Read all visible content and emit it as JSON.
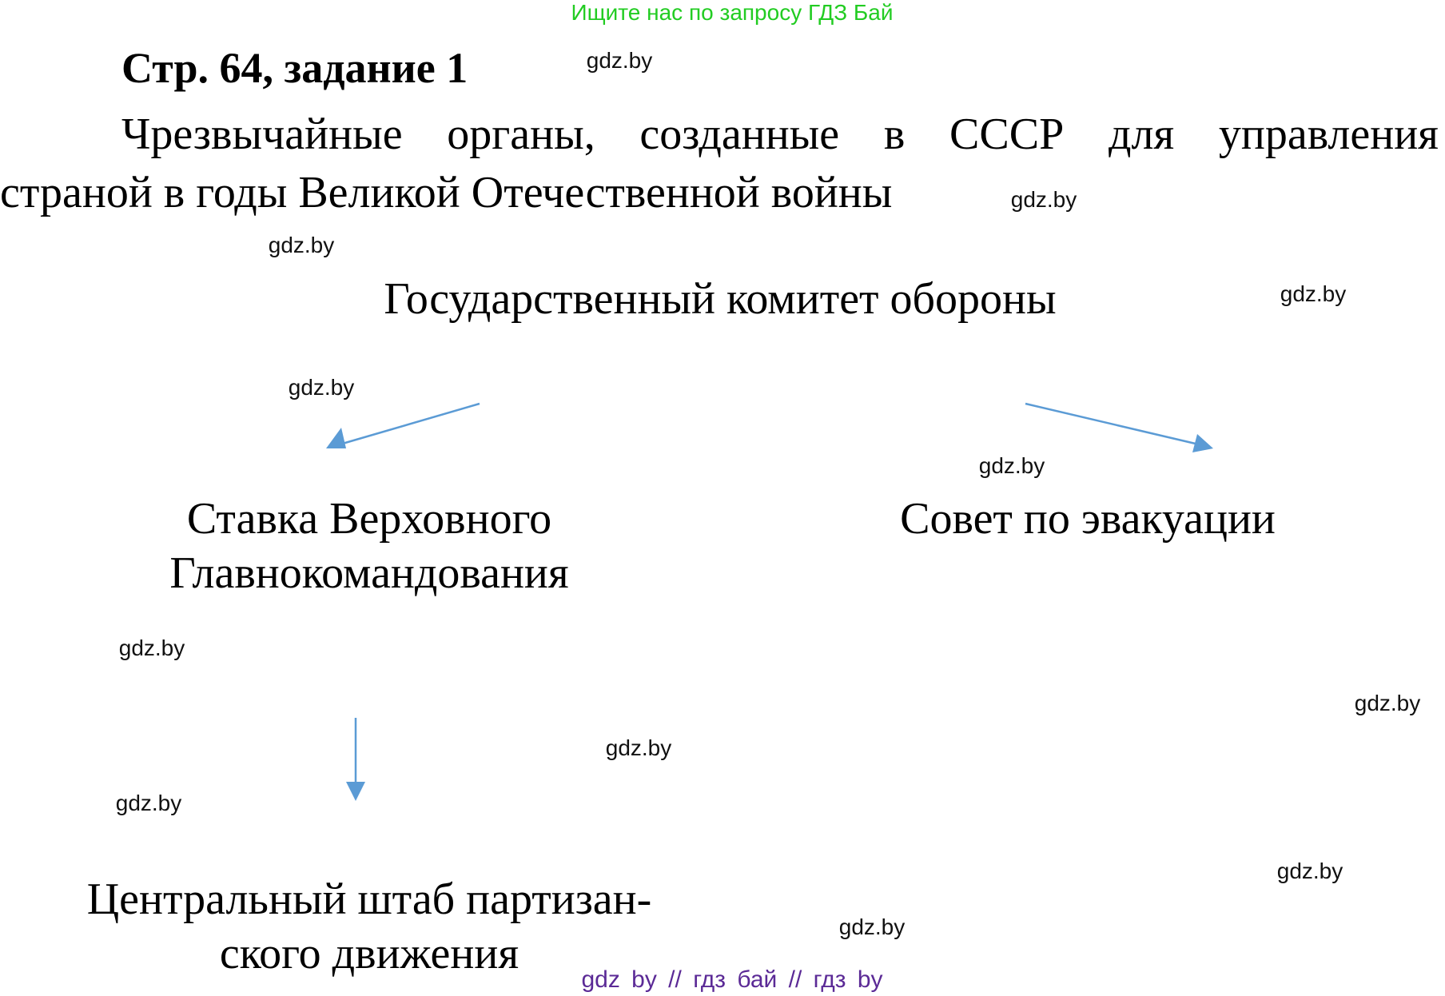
{
  "header_banner": {
    "text": "Ищите нас по запросу ГДЗ Бай",
    "color": "#22cc22"
  },
  "title": "Стр. 64, задание 1",
  "question": {
    "line1_words": [
      "Чрезвычайные",
      "органы,",
      "созданные",
      "в",
      "СССР",
      "для",
      "управления"
    ],
    "line2": "страной в годы Великой Отечественной войны"
  },
  "diagram": {
    "root": "Государственный комитет обороны",
    "left_child": [
      "Ставка Верховного",
      "Главнокомандования"
    ],
    "right_child": "Совет по эвакуации",
    "left_grandchild": [
      "Центральный штаб партизан-",
      "ского движения"
    ],
    "arrow_color": "#5b9bd5"
  },
  "watermark": "gdz.by",
  "footer": {
    "text": "gdz by  //  гдз бай  //  гдз by",
    "color": "#5b2a96"
  }
}
